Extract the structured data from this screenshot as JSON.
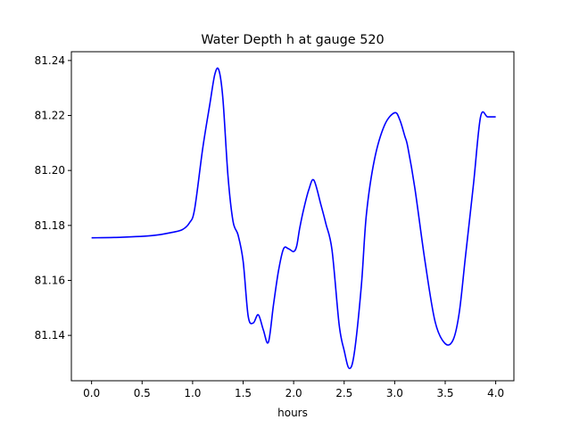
{
  "chart_data": {
    "type": "line",
    "title": "Water Depth h at gauge 520",
    "xlabel": "hours",
    "ylabel": "",
    "xlim": [
      -0.2,
      4.18
    ],
    "ylim": [
      81.1235,
      81.2432
    ],
    "xticks": [
      0.0,
      0.5,
      1.0,
      1.5,
      2.0,
      2.5,
      3.0,
      3.5,
      4.0
    ],
    "xtick_labels": [
      "0.0",
      "0.5",
      "1.0",
      "1.5",
      "2.0",
      "2.5",
      "3.0",
      "3.5",
      "4.0"
    ],
    "yticks": [
      81.14,
      81.16,
      81.18,
      81.2,
      81.22,
      81.24
    ],
    "ytick_labels": [
      "81.14",
      "81.16",
      "81.18",
      "81.20",
      "81.22",
      "81.24"
    ],
    "grid": false,
    "series": [
      {
        "color": "#0000ff",
        "x": [
          0.0,
          0.3,
          0.6,
          0.8,
          0.9,
          0.97,
          1.02,
          1.1,
          1.17,
          1.22,
          1.26,
          1.3,
          1.35,
          1.4,
          1.45,
          1.5,
          1.55,
          1.6,
          1.65,
          1.7,
          1.75,
          1.8,
          1.85,
          1.9,
          1.95,
          2.0,
          2.03,
          2.06,
          2.1,
          2.15,
          2.2,
          2.27,
          2.32,
          2.38,
          2.45,
          2.5,
          2.55,
          2.6,
          2.67,
          2.72,
          2.8,
          2.9,
          3.0,
          3.05,
          3.1,
          3.13,
          3.2,
          3.3,
          3.4,
          3.5,
          3.58,
          3.64,
          3.7,
          3.78,
          3.85,
          3.92,
          4.0
        ],
        "y": [
          81.1755,
          81.1757,
          81.1763,
          81.1775,
          81.1785,
          81.181,
          81.186,
          81.208,
          81.224,
          81.235,
          81.2365,
          81.226,
          81.198,
          81.1815,
          81.1765,
          81.167,
          81.147,
          81.1445,
          81.1475,
          81.142,
          81.1375,
          81.151,
          81.1635,
          81.1715,
          81.1715,
          81.1705,
          81.1725,
          81.179,
          81.186,
          81.193,
          81.1965,
          81.1875,
          81.1805,
          81.171,
          81.144,
          81.1345,
          81.128,
          81.1335,
          81.158,
          81.184,
          81.204,
          81.2165,
          81.221,
          81.2185,
          81.2125,
          81.2085,
          81.1935,
          81.167,
          81.145,
          81.137,
          81.1385,
          81.1485,
          81.1685,
          81.195,
          81.2195,
          81.2195,
          81.2195
        ]
      }
    ]
  }
}
